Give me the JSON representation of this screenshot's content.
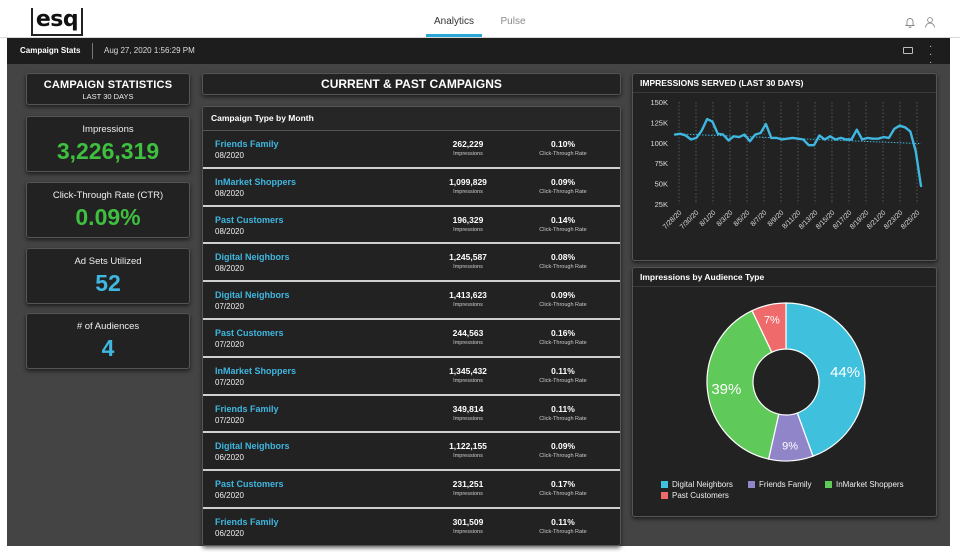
{
  "app": {
    "logo_text": "esq",
    "tabs": [
      {
        "label": "Analytics",
        "active": true
      },
      {
        "label": "Pulse",
        "active": false
      }
    ],
    "header_icons": [
      "bell-icon",
      "user-icon"
    ],
    "accent": "#2aa7d9"
  },
  "subbar": {
    "title": "Campaign Stats",
    "date": "Aug 27, 2020 1:56:29 PM",
    "icons": [
      "keyboard-icon",
      "more-vertical-icon"
    ]
  },
  "stats": {
    "title": "CAMPAIGN STATISTICS",
    "subtitle": "LAST 30 DAYS",
    "kpis": [
      {
        "label": "Impressions",
        "value": "3,226,319",
        "color": "#3fbf3f"
      },
      {
        "label": "Click-Through Rate (CTR)",
        "value": "0.09%",
        "color": "#3fbf3f"
      },
      {
        "label": "Ad Sets Utilized",
        "value": "52",
        "color": "#3fb7e0"
      },
      {
        "label": "# of Audiences",
        "value": "4",
        "color": "#3fb7e0"
      }
    ]
  },
  "campaigns": {
    "title": "CURRENT & PAST CAMPAIGNS",
    "subtitle": "Campaign Type by Month",
    "impressions_label": "Impressions",
    "ctr_label": "Click-Through Rate",
    "rows": [
      {
        "name": "Friends Family",
        "month": "08/2020",
        "impressions": "262,229",
        "ctr": "0.10%"
      },
      {
        "name": "InMarket Shoppers",
        "month": "08/2020",
        "impressions": "1,099,829",
        "ctr": "0.09%"
      },
      {
        "name": "Past Customers",
        "month": "08/2020",
        "impressions": "196,329",
        "ctr": "0.14%"
      },
      {
        "name": "Digital Neighbors",
        "month": "08/2020",
        "impressions": "1,245,587",
        "ctr": "0.08%"
      },
      {
        "name": "Digital Neighbors",
        "month": "07/2020",
        "impressions": "1,413,623",
        "ctr": "0.09%"
      },
      {
        "name": "Past Customers",
        "month": "07/2020",
        "impressions": "244,563",
        "ctr": "0.16%"
      },
      {
        "name": "InMarket Shoppers",
        "month": "07/2020",
        "impressions": "1,345,432",
        "ctr": "0.11%"
      },
      {
        "name": "Friends Family",
        "month": "07/2020",
        "impressions": "349,814",
        "ctr": "0.11%"
      },
      {
        "name": "Digital Neighbors",
        "month": "06/2020",
        "impressions": "1,122,155",
        "ctr": "0.09%"
      },
      {
        "name": "Past Customers",
        "month": "06/2020",
        "impressions": "231,251",
        "ctr": "0.17%"
      },
      {
        "name": "Friends Family",
        "month": "06/2020",
        "impressions": "301,509",
        "ctr": "0.11%"
      }
    ]
  },
  "chart_data": [
    {
      "type": "line",
      "title": "IMPRESSIONS SERVED (LAST 30 DAYS)",
      "xlabel": "",
      "ylabel": "",
      "y_ticks": [
        "150K",
        "125K",
        "100K",
        "75K",
        "50K",
        "25K"
      ],
      "ylim": [
        25000,
        150000
      ],
      "x_ticks": [
        "7/28/20",
        "7/30/20",
        "8/1/20",
        "8/3/20",
        "8/5/20",
        "8/7/20",
        "8/9/20",
        "8/11/20",
        "8/13/20",
        "8/15/20",
        "8/17/20",
        "8/19/20",
        "8/21/20",
        "8/23/20",
        "8/25/20"
      ],
      "series_color": "#3fb7e0",
      "trendline": {
        "style": "dotted",
        "start": 111000,
        "end": 99000
      },
      "grid": "vertical dotted",
      "values": [
        110000,
        111000,
        109000,
        104000,
        106000,
        115000,
        129000,
        126000,
        111000,
        110000,
        103000,
        108000,
        107000,
        110000,
        102000,
        110000,
        112000,
        123000,
        106000,
        106000,
        104000,
        105000,
        106000,
        105000,
        104000,
        97000,
        97000,
        109000,
        104000,
        108000,
        104000,
        106000,
        104000,
        104000,
        116000,
        104000,
        106000,
        105000,
        105000,
        107000,
        106000,
        117000,
        121000,
        119000,
        114000,
        90000,
        47000
      ]
    },
    {
      "type": "pie",
      "title": "Impressions by Audience Type",
      "donut": true,
      "slices": [
        {
          "label": "Digital Neighbors",
          "value": 44,
          "display": "44%",
          "color": "#3fc1dd"
        },
        {
          "label": "Friends Family",
          "value": 9,
          "display": "9%",
          "color": "#9185c9"
        },
        {
          "label": "InMarket Shoppers",
          "value": 39,
          "display": "39%",
          "color": "#5fca5a"
        },
        {
          "label": "Past Customers",
          "value": 7,
          "display": "7%",
          "color": "#ef6b6b"
        }
      ],
      "legend_position": "bottom"
    }
  ]
}
